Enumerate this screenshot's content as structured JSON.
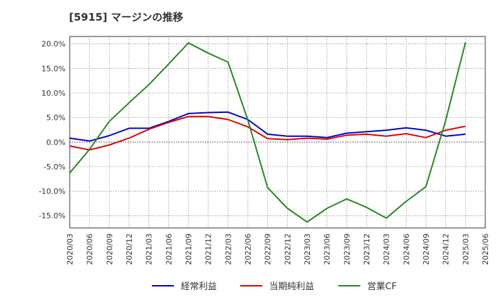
{
  "title": "[5915]  マージンの推移",
  "chart_data": {
    "type": "line",
    "title": "[5915]  マージンの推移",
    "categories": [
      "2020/03",
      "2020/06",
      "2020/09",
      "2020/12",
      "2021/03",
      "2021/06",
      "2021/09",
      "2021/12",
      "2022/03",
      "2022/06",
      "2022/09",
      "2022/12",
      "2023/03",
      "2023/06",
      "2023/09",
      "2023/12",
      "2024/03",
      "2024/06",
      "2024/09",
      "2024/12",
      "2025/03",
      "2025/06"
    ],
    "y_ticks": [
      "20.0%",
      "15.0%",
      "10.0%",
      "5.0%",
      "0.0%",
      "-5.0%",
      "-10.0%",
      "-15.0%"
    ],
    "y_tick_values": [
      20,
      15,
      10,
      5,
      0,
      -5,
      -10,
      -15
    ],
    "ylim": [
      -17.5,
      21.5
    ],
    "grid": true,
    "legend_position": "bottom",
    "series": [
      {
        "name": "経常利益",
        "color": "#0000cc",
        "values": [
          0.8,
          0.2,
          1.3,
          2.8,
          2.8,
          4.2,
          5.8,
          6.0,
          6.1,
          4.6,
          1.6,
          1.2,
          1.2,
          0.9,
          1.8,
          2.1,
          2.4,
          2.9,
          2.4,
          1.2,
          1.6,
          null
        ]
      },
      {
        "name": "当期純利益",
        "color": "#dd0000",
        "values": [
          -0.8,
          -1.6,
          -0.6,
          0.8,
          2.6,
          4.0,
          5.2,
          5.2,
          4.6,
          3.1,
          0.7,
          0.5,
          0.8,
          0.6,
          1.4,
          1.6,
          1.2,
          1.7,
          0.9,
          2.4,
          3.2,
          null
        ]
      },
      {
        "name": "営業CF",
        "color": "#228822",
        "values": [
          -6.3,
          -1.5,
          4.2,
          8.0,
          11.7,
          15.9,
          20.2,
          18.1,
          16.3,
          4.5,
          -9.3,
          -13.5,
          -16.3,
          -13.5,
          -11.6,
          -13.3,
          -15.5,
          -12.1,
          -9.1,
          4.4,
          20.3,
          null
        ]
      }
    ]
  }
}
